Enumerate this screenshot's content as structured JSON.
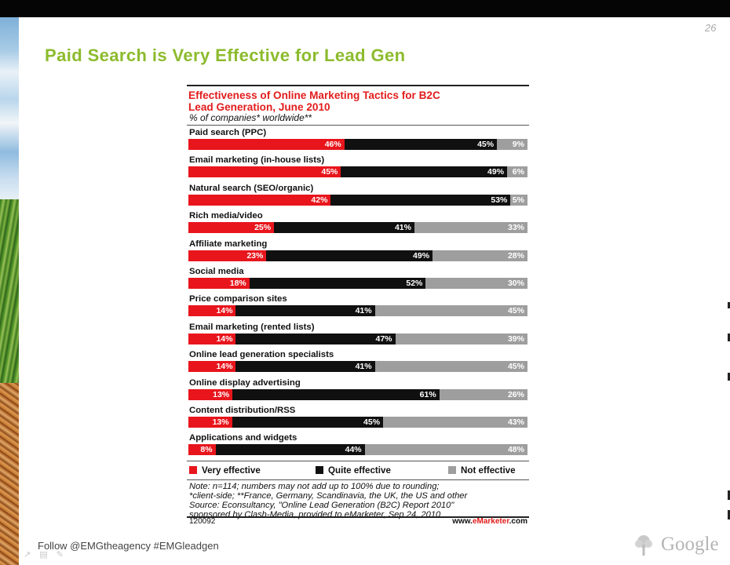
{
  "slide": {
    "number": "26",
    "title": "Paid Search is Very Effective for Lead Gen",
    "footer": "Follow @EMGtheagency #EMGleadgen",
    "logo_word": "Google"
  },
  "chart_data": {
    "type": "bar",
    "stacked": true,
    "orientation": "horizontal",
    "title_line1": "Effectiveness of Online Marketing Tactics for B2C",
    "title_line2": "Lead Generation, June 2010",
    "subtitle": "% of companies* worldwide**",
    "categories": [
      "Paid search (PPC)",
      "Email marketing (in-house lists)",
      "Natural search (SEO/organic)",
      "Rich media/video",
      "Affiliate marketing",
      "Social media",
      "Price comparison sites",
      "Email marketing (rented lists)",
      "Online lead generation specialists",
      "Online display advertising",
      "Content distribution/RSS",
      "Applications and widgets"
    ],
    "series": [
      {
        "name": "Very effective",
        "color": "#e8151c",
        "values": [
          46,
          45,
          42,
          25,
          23,
          18,
          14,
          14,
          14,
          13,
          13,
          8
        ]
      },
      {
        "name": "Quite effective",
        "color": "#101010",
        "values": [
          45,
          49,
          53,
          41,
          49,
          52,
          41,
          47,
          41,
          61,
          45,
          44
        ]
      },
      {
        "name": "Not effective",
        "color": "#9e9e9e",
        "values": [
          9,
          6,
          5,
          33,
          28,
          30,
          45,
          39,
          45,
          26,
          43,
          48
        ]
      }
    ],
    "legend_position": "bottom",
    "note_lines": [
      "Note: n=114; numbers may not add up to 100% due to rounding;",
      "*client-side; **France, Germany, Scandinavia, the UK, the US and other",
      "Source: Econsultancy, \"Online Lead Generation (B2C) Report 2010\"",
      "sponsored by Clash-Media, provided to eMarketer, Sep 24, 2010"
    ],
    "chart_id": "120092",
    "brand_prefix": "www.",
    "brand_em": "eMarketer",
    "brand_suffix": ".com"
  }
}
